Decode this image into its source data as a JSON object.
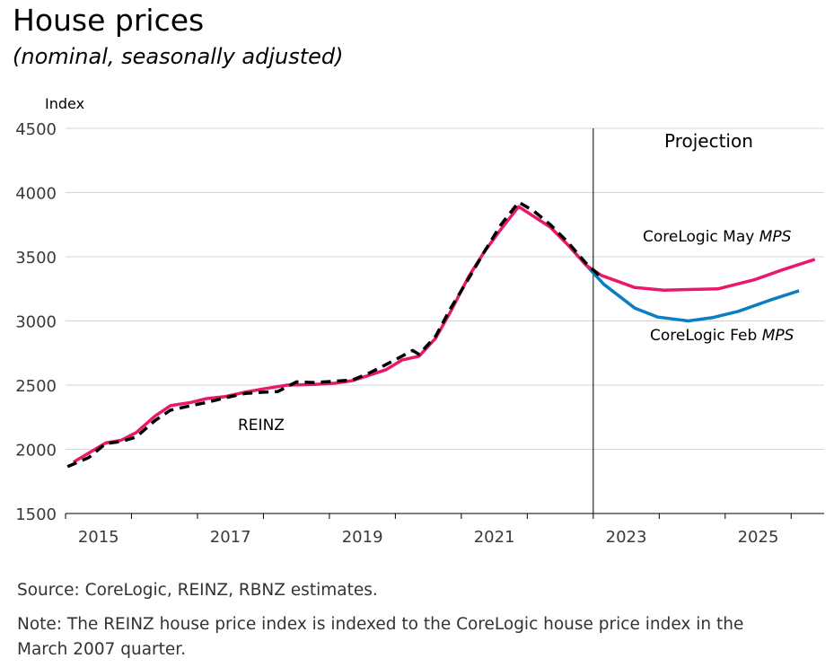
{
  "title": "House prices",
  "subtitle": "(nominal, seasonally adjusted)",
  "source": "Source: CoreLogic, REINZ, RBNZ estimates.",
  "note_line1": "Note: The REINZ house price index is indexed to the CoreLogic house price index in the",
  "note_line2": "March 2007 quarter.",
  "colors": {
    "corelogic_may": "#e8196a",
    "corelogic_feb": "#0a7ec2",
    "reinz": "#000000",
    "grid": "#d4d4d4"
  },
  "chart_data": {
    "type": "line",
    "ylabel": "Index",
    "ylim": [
      1500,
      4500
    ],
    "yticks": [
      1500,
      2000,
      2500,
      3000,
      3500,
      4000,
      4500
    ],
    "xlim": [
      2015.0,
      2026.5
    ],
    "xtick_labels": [
      "2015",
      "2017",
      "2019",
      "2021",
      "2023",
      "2025"
    ],
    "grid": true,
    "projection_start": 2023.0,
    "projection_label": "Projection",
    "series": [
      {
        "name": "REINZ",
        "label": "REINZ",
        "style": "dashed",
        "x": [
          2015.03,
          2015.35,
          2015.61,
          2015.84,
          2016.07,
          2016.36,
          2016.59,
          2016.9,
          2017.14,
          2017.41,
          2017.72,
          2017.99,
          2018.22,
          2018.5,
          2018.77,
          2019.08,
          2019.35,
          2019.59,
          2019.86,
          2020.1,
          2020.26,
          2020.36,
          2020.61,
          2020.84,
          2021.11,
          2021.35,
          2021.6,
          2021.87,
          2022.1,
          2022.35,
          2022.62,
          2022.89,
          2023.14
        ],
        "y": [
          1865,
          1935,
          2045,
          2060,
          2095,
          2225,
          2305,
          2340,
          2365,
          2400,
          2435,
          2445,
          2450,
          2525,
          2520,
          2530,
          2540,
          2590,
          2660,
          2725,
          2770,
          2740,
          2880,
          3100,
          3330,
          3540,
          3750,
          3925,
          3855,
          3750,
          3610,
          3450,
          3330
        ]
      },
      {
        "name": "CoreLogic May MPS",
        "label": "CoreLogic May",
        "label_italic": "MPS",
        "style": "solid",
        "x": [
          2015.12,
          2015.35,
          2015.61,
          2015.84,
          2016.07,
          2016.36,
          2016.59,
          2016.9,
          2017.14,
          2017.41,
          2017.72,
          2017.99,
          2018.36,
          2018.77,
          2019.08,
          2019.35,
          2019.59,
          2019.86,
          2020.1,
          2020.36,
          2020.61,
          2020.84,
          2021.11,
          2021.35,
          2021.6,
          2021.87,
          2022.35,
          2022.62,
          2022.89,
          2023.12,
          2023.63,
          2024.07,
          2024.89,
          2025.44,
          2025.88,
          2026.36
        ],
        "y": [
          1900,
          1970,
          2050,
          2070,
          2130,
          2260,
          2340,
          2365,
          2395,
          2410,
          2445,
          2470,
          2500,
          2505,
          2515,
          2535,
          2575,
          2620,
          2695,
          2725,
          2865,
          3075,
          3345,
          3540,
          3715,
          3890,
          3730,
          3590,
          3435,
          3355,
          3260,
          3240,
          3250,
          3320,
          3400,
          3480
        ]
      },
      {
        "name": "CoreLogic Feb MPS",
        "label": "CoreLogic Feb",
        "label_italic": "MPS",
        "style": "solid",
        "x": [
          2022.62,
          2022.99,
          2023.16,
          2023.63,
          2023.98,
          2024.44,
          2024.8,
          2025.2,
          2025.67,
          2026.12
        ],
        "y": [
          3590,
          3380,
          3285,
          3100,
          3030,
          3000,
          3025,
          3075,
          3160,
          3235
        ]
      }
    ]
  }
}
